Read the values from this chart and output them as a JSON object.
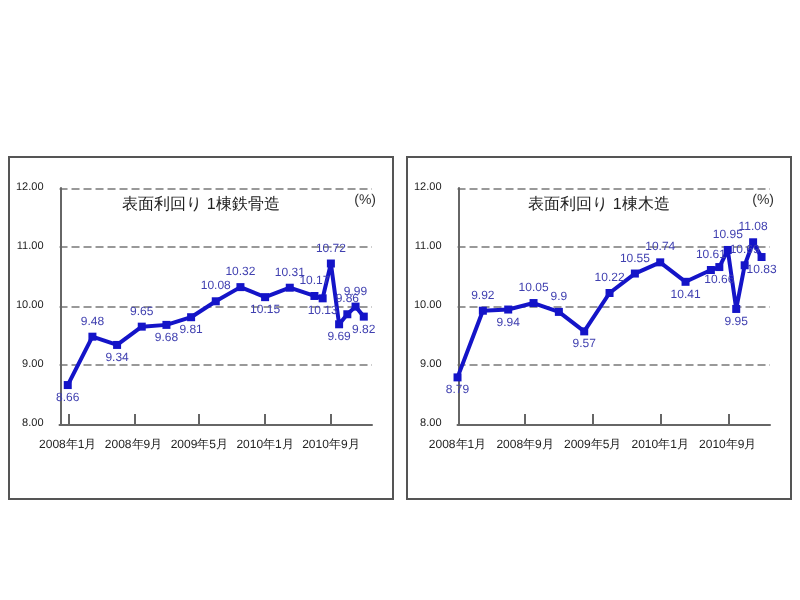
{
  "chart_data": [
    {
      "type": "line",
      "title": "表面利回り 1棟鉄骨造",
      "annotations": [
        "(%)"
      ],
      "x": [
        "2008-01",
        "2008-04",
        "2008-07",
        "2008-10",
        "2009-01",
        "2009-04",
        "2009-07",
        "2009-10",
        "2010-01",
        "2010-04",
        "2010-07",
        "2010-08",
        "2010-09",
        "2010-10",
        "2010-11",
        "2010-12",
        "2011-01"
      ],
      "series": [
        {
          "color": "#1414c8",
          "values": [
            8.66,
            9.48,
            9.34,
            9.65,
            9.68,
            9.81,
            10.08,
            10.32,
            10.15,
            10.31,
            10.17,
            10.13,
            10.72,
            9.69,
            9.86,
            9.99,
            9.82
          ]
        }
      ],
      "data_labels": true,
      "marker": "square",
      "grid": "y",
      "xlim": [
        "2007-12",
        "2011-02"
      ],
      "xticks": [
        {
          "value": "2008-01",
          "label": "2008年1月"
        },
        {
          "value": "2008-09",
          "label": "2008年9月"
        },
        {
          "value": "2009-05",
          "label": "2009年5月"
        },
        {
          "value": "2010-01",
          "label": "2010年1月"
        },
        {
          "value": "2010-09",
          "label": "2010年9月"
        }
      ],
      "ylim": [
        8,
        12
      ],
      "yticks": [
        {
          "value": 8,
          "label": "8.00"
        },
        {
          "value": 9,
          "label": "9.00"
        },
        {
          "value": 10,
          "label": "10.00"
        },
        {
          "value": 11,
          "label": "11.00"
        },
        {
          "value": 12,
          "label": "12.00"
        }
      ]
    },
    {
      "type": "line",
      "title": "表面利回り 1棟木造",
      "annotations": [
        "(%)"
      ],
      "x": [
        "2008-01",
        "2008-04",
        "2008-07",
        "2008-10",
        "2009-01",
        "2009-04",
        "2009-07",
        "2009-10",
        "2010-01",
        "2010-04",
        "2010-07",
        "2010-08",
        "2010-09",
        "2010-10",
        "2010-11",
        "2010-12",
        "2011-01"
      ],
      "series": [
        {
          "color": "#1414c8",
          "values": [
            8.79,
            9.92,
            9.94,
            10.05,
            9.9,
            9.57,
            10.22,
            10.55,
            10.74,
            10.41,
            10.61,
            10.66,
            10.95,
            9.95,
            10.69,
            11.08,
            10.83
          ]
        }
      ],
      "data_labels": true,
      "marker": "square",
      "grid": "y",
      "xlim": [
        "2008-01",
        "2011-02"
      ],
      "xticks": [
        {
          "value": "2008-01",
          "label": "2008年1月"
        },
        {
          "value": "2008-09",
          "label": "2008年9月"
        },
        {
          "value": "2009-05",
          "label": "2009年5月"
        },
        {
          "value": "2010-01",
          "label": "2010年1月"
        },
        {
          "value": "2010-09",
          "label": "2010年9月"
        }
      ],
      "ylim": [
        8,
        12
      ],
      "yticks": [
        {
          "value": 8,
          "label": "8.00"
        },
        {
          "value": 9,
          "label": "9.00"
        },
        {
          "value": 10,
          "label": "10.00"
        },
        {
          "value": 11,
          "label": "11.00"
        },
        {
          "value": 12,
          "label": "12.00"
        }
      ]
    }
  ]
}
